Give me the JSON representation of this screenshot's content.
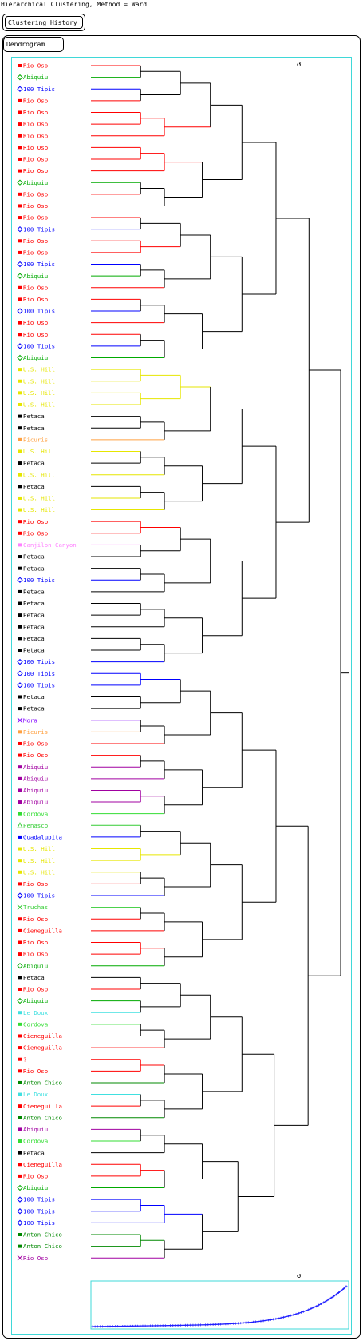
{
  "title": "Hierarchical Clustering, Method = Ward",
  "history_button": "Clustering History",
  "tab_label": "Dendrogram",
  "refresh_icon_glyph": "↺",
  "colors": {
    "Rio Oso": "#ff0000",
    "Abiquiu": "#00aa00",
    "100 Tipis": "#0000ff",
    "U.S. Hill": "#e6e600",
    "Petaca": "#000000",
    "Picuris": "#ffa040",
    "Canjilon Canyon": "#ff80ff",
    "Mora": "#8000ff",
    "Cordova": "#33dd33",
    "Penasco": "#33cc33",
    "Guadalupita": "#0000ff",
    "Truchas": "#33cc33",
    "Cieneguilla": "#ff0000",
    "Le Doux": "#40e0e0",
    "?": "#ff0000",
    "Anton Chico": "#008800",
    "Abiquiu-purple": "#a000a0",
    "Rio Oso-purple": "#a000a0"
  },
  "chart_data": {
    "type": "dendrogram",
    "title": "Hierarchical Clustering, Method = Ward",
    "leaves": [
      {
        "label": "Rio Oso",
        "marker": "square",
        "color": "#ff0000"
      },
      {
        "label": "Abiquiu",
        "marker": "diamond",
        "color": "#00aa00"
      },
      {
        "label": "100 Tipis",
        "marker": "diamond",
        "color": "#0000ff"
      },
      {
        "label": "Rio Oso",
        "marker": "square",
        "color": "#ff0000"
      },
      {
        "label": "Rio Oso",
        "marker": "square",
        "color": "#ff0000"
      },
      {
        "label": "Rio Oso",
        "marker": "square",
        "color": "#ff0000"
      },
      {
        "label": "Rio Oso",
        "marker": "square",
        "color": "#ff0000"
      },
      {
        "label": "Rio Oso",
        "marker": "square",
        "color": "#ff0000"
      },
      {
        "label": "Rio Oso",
        "marker": "square",
        "color": "#ff0000"
      },
      {
        "label": "Rio Oso",
        "marker": "square",
        "color": "#ff0000"
      },
      {
        "label": "Abiquiu",
        "marker": "diamond",
        "color": "#00aa00"
      },
      {
        "label": "Rio Oso",
        "marker": "square",
        "color": "#ff0000"
      },
      {
        "label": "Rio Oso",
        "marker": "square",
        "color": "#ff0000"
      },
      {
        "label": "Rio Oso",
        "marker": "square",
        "color": "#ff0000"
      },
      {
        "label": "100 Tipis",
        "marker": "diamond",
        "color": "#0000ff"
      },
      {
        "label": "Rio Oso",
        "marker": "square",
        "color": "#ff0000"
      },
      {
        "label": "Rio Oso",
        "marker": "square",
        "color": "#ff0000"
      },
      {
        "label": "100 Tipis",
        "marker": "diamond",
        "color": "#0000ff"
      },
      {
        "label": "Abiquiu",
        "marker": "diamond",
        "color": "#00aa00"
      },
      {
        "label": "Rio Oso",
        "marker": "square",
        "color": "#ff0000"
      },
      {
        "label": "Rio Oso",
        "marker": "square",
        "color": "#ff0000"
      },
      {
        "label": "100 Tipis",
        "marker": "diamond",
        "color": "#0000ff"
      },
      {
        "label": "Rio Oso",
        "marker": "square",
        "color": "#ff0000"
      },
      {
        "label": "Rio Oso",
        "marker": "square",
        "color": "#ff0000"
      },
      {
        "label": "100 Tipis",
        "marker": "diamond",
        "color": "#0000ff"
      },
      {
        "label": "Abiquiu",
        "marker": "diamond",
        "color": "#00aa00"
      },
      {
        "label": "U.S. Hill",
        "marker": "square",
        "color": "#e6e600"
      },
      {
        "label": "U.S. Hill",
        "marker": "square",
        "color": "#e6e600"
      },
      {
        "label": "U.S. Hill",
        "marker": "square",
        "color": "#e6e600"
      },
      {
        "label": "U.S. Hill",
        "marker": "square",
        "color": "#e6e600"
      },
      {
        "label": "Petaca",
        "marker": "square",
        "color": "#000000"
      },
      {
        "label": "Petaca",
        "marker": "square",
        "color": "#000000"
      },
      {
        "label": "Picuris",
        "marker": "square",
        "color": "#ffa040"
      },
      {
        "label": "U.S. Hill",
        "marker": "square",
        "color": "#e6e600"
      },
      {
        "label": "Petaca",
        "marker": "square",
        "color": "#000000"
      },
      {
        "label": "U.S. Hill",
        "marker": "square",
        "color": "#e6e600"
      },
      {
        "label": "Petaca",
        "marker": "square",
        "color": "#000000"
      },
      {
        "label": "U.S. Hill",
        "marker": "square",
        "color": "#e6e600"
      },
      {
        "label": "U.S. Hill",
        "marker": "square",
        "color": "#e6e600"
      },
      {
        "label": "Rio Oso",
        "marker": "square",
        "color": "#ff0000"
      },
      {
        "label": "Rio Oso",
        "marker": "square",
        "color": "#ff0000"
      },
      {
        "label": "Canjilon Canyon",
        "marker": "square",
        "color": "#ff80ff"
      },
      {
        "label": "Petaca",
        "marker": "square",
        "color": "#000000"
      },
      {
        "label": "Petaca",
        "marker": "square",
        "color": "#000000"
      },
      {
        "label": "100 Tipis",
        "marker": "diamond",
        "color": "#0000ff"
      },
      {
        "label": "Petaca",
        "marker": "square",
        "color": "#000000"
      },
      {
        "label": "Petaca",
        "marker": "square",
        "color": "#000000"
      },
      {
        "label": "Petaca",
        "marker": "square",
        "color": "#000000"
      },
      {
        "label": "Petaca",
        "marker": "square",
        "color": "#000000"
      },
      {
        "label": "Petaca",
        "marker": "square",
        "color": "#000000"
      },
      {
        "label": "Petaca",
        "marker": "square",
        "color": "#000000"
      },
      {
        "label": "100 Tipis",
        "marker": "diamond",
        "color": "#0000ff"
      },
      {
        "label": "100 Tipis",
        "marker": "diamond",
        "color": "#0000ff"
      },
      {
        "label": "100 Tipis",
        "marker": "diamond",
        "color": "#0000ff"
      },
      {
        "label": "Petaca",
        "marker": "square",
        "color": "#000000"
      },
      {
        "label": "Petaca",
        "marker": "square",
        "color": "#000000"
      },
      {
        "label": "Mora",
        "marker": "cross",
        "color": "#8000ff"
      },
      {
        "label": "Picuris",
        "marker": "square",
        "color": "#ffa040"
      },
      {
        "label": "Rio Oso",
        "marker": "square",
        "color": "#ff0000"
      },
      {
        "label": "Rio Oso",
        "marker": "square",
        "color": "#ff0000"
      },
      {
        "label": "Abiquiu",
        "marker": "square",
        "color": "#a000a0"
      },
      {
        "label": "Abiquiu",
        "marker": "square",
        "color": "#a000a0"
      },
      {
        "label": "Abiquiu",
        "marker": "square",
        "color": "#a000a0"
      },
      {
        "label": "Abiquiu",
        "marker": "square",
        "color": "#a000a0"
      },
      {
        "label": "Cordova",
        "marker": "square",
        "color": "#33dd33"
      },
      {
        "label": "Penasco",
        "marker": "triangle",
        "color": "#33cc33"
      },
      {
        "label": "Guadalupita",
        "marker": "square",
        "color": "#0000ff"
      },
      {
        "label": "U.S. Hill",
        "marker": "square",
        "color": "#e6e600"
      },
      {
        "label": "U.S. Hill",
        "marker": "square",
        "color": "#e6e600"
      },
      {
        "label": "U.S. Hill",
        "marker": "square",
        "color": "#e6e600"
      },
      {
        "label": "Rio Oso",
        "marker": "square",
        "color": "#ff0000"
      },
      {
        "label": "100 Tipis",
        "marker": "diamond",
        "color": "#0000ff"
      },
      {
        "label": "Truchas",
        "marker": "cross",
        "color": "#33cc33"
      },
      {
        "label": "Rio Oso",
        "marker": "square",
        "color": "#ff0000"
      },
      {
        "label": "Cieneguilla",
        "marker": "square",
        "color": "#ff0000"
      },
      {
        "label": "Rio Oso",
        "marker": "square",
        "color": "#ff0000"
      },
      {
        "label": "Rio Oso",
        "marker": "square",
        "color": "#ff0000"
      },
      {
        "label": "Abiquiu",
        "marker": "diamond",
        "color": "#00aa00"
      },
      {
        "label": "Petaca",
        "marker": "square",
        "color": "#000000"
      },
      {
        "label": "Rio Oso",
        "marker": "square",
        "color": "#ff0000"
      },
      {
        "label": "Abiquiu",
        "marker": "diamond",
        "color": "#00aa00"
      },
      {
        "label": "Le Doux",
        "marker": "square",
        "color": "#40e0e0"
      },
      {
        "label": "Cordova",
        "marker": "square",
        "color": "#33dd33"
      },
      {
        "label": "Cieneguilla",
        "marker": "square",
        "color": "#ff0000"
      },
      {
        "label": "Cieneguilla",
        "marker": "square",
        "color": "#ff0000"
      },
      {
        "label": "?",
        "marker": "square",
        "color": "#ff0000"
      },
      {
        "label": "Rio Oso",
        "marker": "square",
        "color": "#ff0000"
      },
      {
        "label": "Anton Chico",
        "marker": "square",
        "color": "#008800"
      },
      {
        "label": "Le Doux",
        "marker": "square",
        "color": "#40e0e0"
      },
      {
        "label": "Cieneguilla",
        "marker": "square",
        "color": "#ff0000"
      },
      {
        "label": "Anton Chico",
        "marker": "square",
        "color": "#008800"
      },
      {
        "label": "Abiquiu",
        "marker": "square",
        "color": "#a000a0"
      },
      {
        "label": "Cordova",
        "marker": "square",
        "color": "#33dd33"
      },
      {
        "label": "Petaca",
        "marker": "square",
        "color": "#000000"
      },
      {
        "label": "Cieneguilla",
        "marker": "square",
        "color": "#ff0000"
      },
      {
        "label": "Rio Oso",
        "marker": "square",
        "color": "#ff0000"
      },
      {
        "label": "Abiquiu",
        "marker": "diamond",
        "color": "#00aa00"
      },
      {
        "label": "100 Tipis",
        "marker": "diamond",
        "color": "#0000ff"
      },
      {
        "label": "100 Tipis",
        "marker": "diamond",
        "color": "#0000ff"
      },
      {
        "label": "100 Tipis",
        "marker": "diamond",
        "color": "#0000ff"
      },
      {
        "label": "Anton Chico",
        "marker": "square",
        "color": "#008800"
      },
      {
        "label": "Anton Chico",
        "marker": "square",
        "color": "#008800"
      },
      {
        "label": "Rio Oso",
        "marker": "cross",
        "color": "#a000a0"
      }
    ],
    "merge_height_range": [
      0,
      1
    ],
    "history_curve": "increasing merge heights"
  }
}
